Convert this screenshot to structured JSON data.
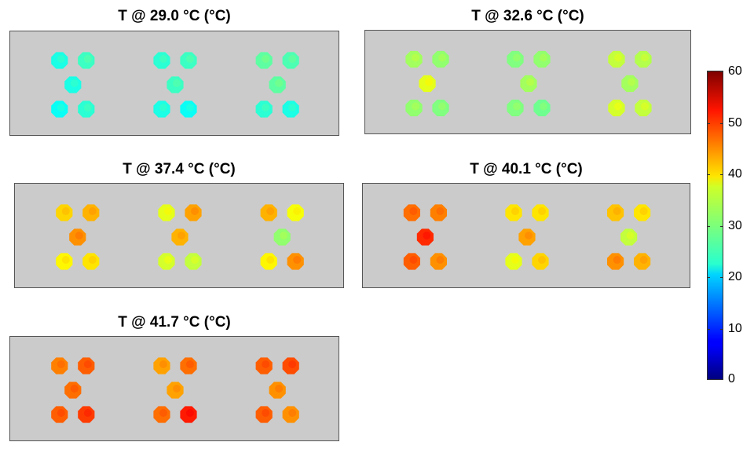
{
  "chart_data": {
    "type": "heatmap",
    "colormap": "jet",
    "colorbar": {
      "min": 0,
      "max": 60,
      "ticks": [
        "0",
        "10",
        "20",
        "30",
        "40",
        "50",
        "60"
      ]
    },
    "background_color": "#cbcbcb",
    "panels": [
      {
        "title": "T @ 29.0 °C (°C)",
        "mean_temperature": 29.0,
        "groups": [
          [
            24,
            26,
            24,
            23,
            25
          ],
          [
            25,
            26,
            26,
            24,
            23
          ],
          [
            28,
            27,
            28,
            25,
            24
          ]
        ]
      },
      {
        "title": "T @ 32.6 °C (°C)",
        "mean_temperature": 32.6,
        "groups": [
          [
            32,
            31,
            36,
            31,
            30
          ],
          [
            30,
            31,
            32,
            30,
            29
          ],
          [
            34,
            33,
            32,
            35,
            34
          ]
        ]
      },
      {
        "title": "T @ 37.4 °C (°C)",
        "mean_temperature": 37.4,
        "groups": [
          [
            40,
            42,
            44,
            38,
            39
          ],
          [
            36,
            43,
            42,
            35,
            34
          ],
          [
            42,
            37,
            31,
            38,
            44
          ]
        ]
      },
      {
        "title": "T @ 40.1 °C (°C)",
        "mean_temperature": 40.1,
        "groups": [
          [
            46,
            45,
            50,
            47,
            44
          ],
          [
            39,
            39,
            43,
            36,
            40
          ],
          [
            41,
            39,
            34,
            44,
            42
          ]
        ]
      },
      {
        "title": "T @ 41.7 °C (°C)",
        "mean_temperature": 41.7,
        "groups": [
          [
            45,
            47,
            46,
            47,
            49
          ],
          [
            43,
            46,
            43,
            46,
            51
          ],
          [
            47,
            48,
            44,
            47,
            44
          ]
        ]
      }
    ]
  }
}
